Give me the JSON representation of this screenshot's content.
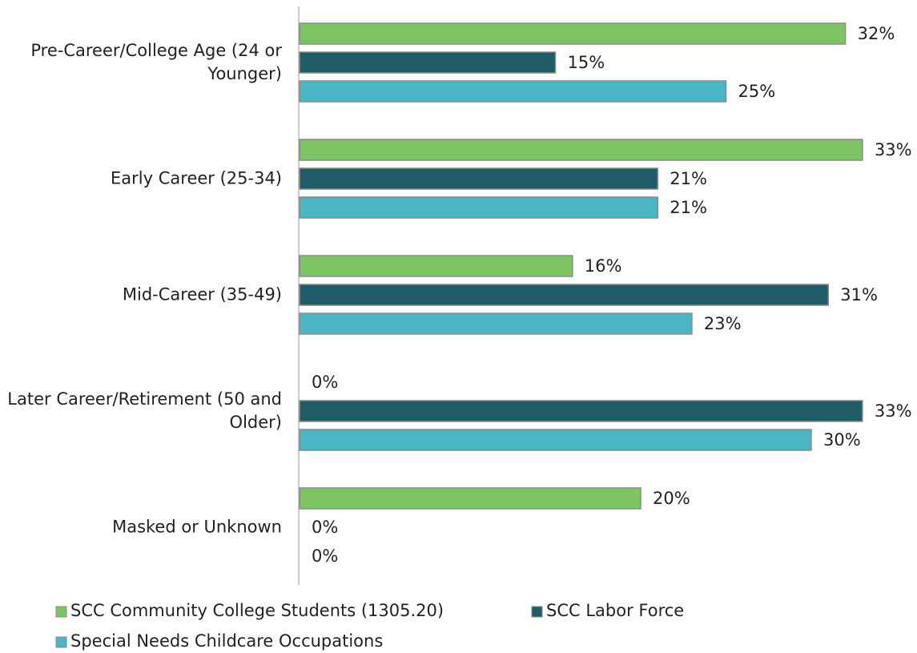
{
  "chart_data": {
    "type": "bar",
    "orientation": "horizontal",
    "categories": [
      "Pre-Career/College Age (24 or Younger)",
      "Early Career (25-34)",
      "Mid-Career (35-49)",
      "Later Career/Retirement (50 and Older)",
      "Masked or Unknown"
    ],
    "series": [
      {
        "name": "SCC Community College Students (1305.20)",
        "color": "#7dc462",
        "values": [
          32,
          33,
          16,
          0,
          20
        ],
        "value_labels": [
          "32%",
          "33%",
          "16%",
          "0%",
          "20%"
        ]
      },
      {
        "name": "SCC Labor Force",
        "color": "#1f5c66",
        "values": [
          15,
          21,
          31,
          33,
          0
        ],
        "value_labels": [
          "15%",
          "21%",
          "31%",
          "33%",
          "0%"
        ]
      },
      {
        "name": "Special Needs Childcare Occupations",
        "color": "#4ab5c4",
        "values": [
          25,
          21,
          23,
          30,
          0
        ],
        "value_labels": [
          "25%",
          "21%",
          "23%",
          "30%",
          "0%"
        ]
      }
    ]
  }
}
